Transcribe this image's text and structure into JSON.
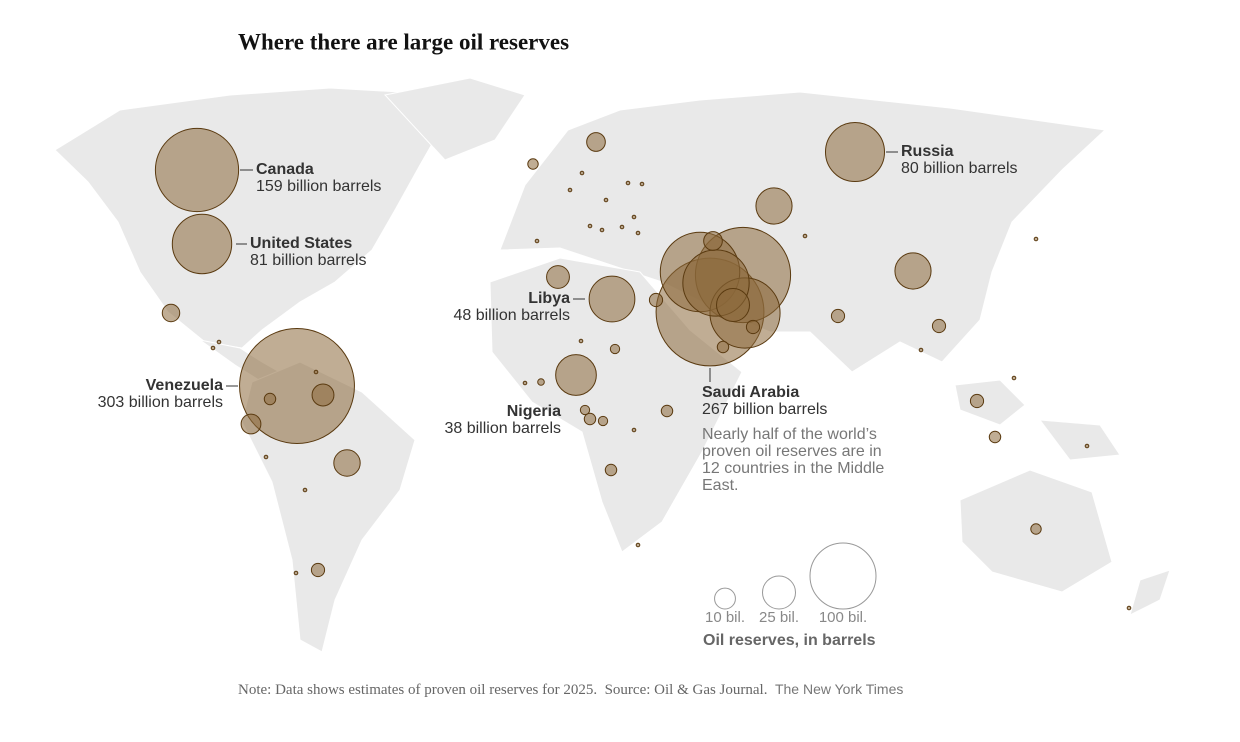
{
  "title": "Where there are large oil reserves",
  "labeled": [
    {
      "name": "Canada",
      "value": 159,
      "value_label": "159 billion barrels"
    },
    {
      "name": "United States",
      "value": 81,
      "value_label": "81 billion barrels"
    },
    {
      "name": "Russia",
      "value": 80,
      "value_label": "80 billion barrels"
    },
    {
      "name": "Venezuela",
      "value": 303,
      "value_label": "303 billion barrels"
    },
    {
      "name": "Libya",
      "value": 48,
      "value_label": "48 billion barrels"
    },
    {
      "name": "Nigeria",
      "value": 38,
      "value_label": "38 billion barrels"
    },
    {
      "name": "Saudi Arabia",
      "value": 267,
      "value_label": "267 billion barrels"
    }
  ],
  "other_reserves": [
    208,
    145,
    113,
    101,
    25,
    30,
    30,
    12,
    16,
    7,
    9,
    3,
    11,
    0.3,
    8,
    4,
    4,
    3,
    2,
    8,
    3,
    4,
    4,
    4,
    4,
    3,
    2.5,
    3,
    2,
    2,
    3,
    1,
    2.5,
    0.3,
    0.3,
    0.3,
    0.3,
    0.3,
    0.3,
    0.3,
    0.3,
    0.3,
    0.3,
    0.3,
    0.3,
    0.3,
    0.3,
    0.3,
    0.3,
    0.3,
    0.3,
    0.3,
    0.3,
    0.3,
    0.3,
    0.3,
    0.3,
    0.3,
    0.3,
    0.3
  ],
  "annotation": "Nearly half of the world’s proven oil reserves are in 12 countries in the Middle East.",
  "legend": {
    "title": "Oil reserves, in barrels",
    "values": [
      10,
      25,
      100
    ],
    "labels": [
      "10 bil.",
      "25 bil.",
      "100 bil."
    ]
  },
  "note": "Note: Data shows estimates of proven oil reserves for 2025.",
  "source": "Source: Oil & Gas Journal.",
  "credit": "The New York Times"
}
